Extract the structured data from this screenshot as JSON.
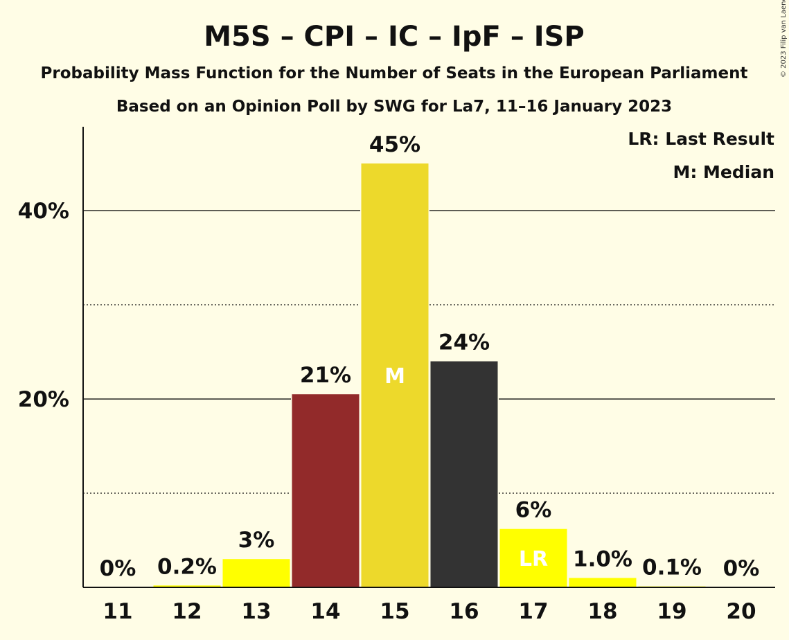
{
  "chart_data": {
    "type": "bar",
    "title": "M5S – CPI – IC – IpF – ISP",
    "subtitle": "Probability Mass Function for the Number of Seats in the European Parliament",
    "subtitle2": "Based on an Opinion Poll by SWG for La7, 11–16 January 2023",
    "copyright": "© 2023 Filip van Laenen",
    "legend": [
      "LR: Last Result",
      "M: Median"
    ],
    "legend_position": "top-right",
    "categories": [
      "11",
      "12",
      "13",
      "14",
      "15",
      "16",
      "17",
      "18",
      "19",
      "20"
    ],
    "values": [
      0,
      0.2,
      3,
      20.5,
      45,
      24,
      6.2,
      1.0,
      0.1,
      0
    ],
    "value_labels": [
      "0%",
      "0.2%",
      "3%",
      "21%",
      "45%",
      "24%",
      "6%",
      "1.0%",
      "0.1%",
      "0%"
    ],
    "bar_colors": [
      "#FFFF00",
      "#FFFF00",
      "#FFFF00",
      "#922A2A",
      "#EDD92B",
      "#333333",
      "#FFFF00",
      "#FFFF00",
      "#FFFF00",
      "#FFFF00"
    ],
    "markers": [
      {
        "category": "15",
        "label": "M"
      },
      {
        "category": "17",
        "label": "LR"
      }
    ],
    "yticks": [
      {
        "value": 20,
        "label": "20%"
      },
      {
        "value": 40,
        "label": "40%"
      }
    ],
    "minor_grid": [
      10,
      30
    ],
    "ylim": [
      0,
      48.9
    ],
    "xlabel": "",
    "ylabel": "",
    "grid": true
  }
}
